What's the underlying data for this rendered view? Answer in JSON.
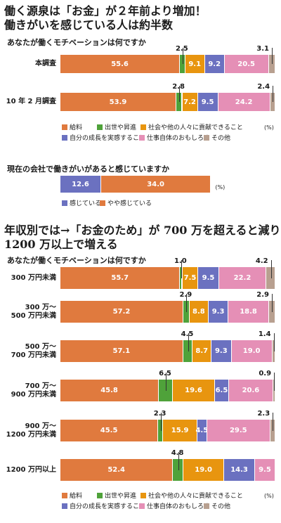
{
  "headline1": {
    "line1": "働く源泉は「お金」が２年前より増加！",
    "line2": "働きがいを感じている人は約半数"
  },
  "headline2": {
    "line1": "年収別では→「お金のため」が 700 万を超えると減り",
    "line2": "1200 万以上で増える"
  },
  "question_motivation": "あなたが働くモチベーションは何ですか",
  "question_fulfillment": "現在の会社で働きがいがあると感じていますか",
  "unit": "(%)",
  "colors": {
    "給料": "#e07a3e",
    "出世や昇進": "#4fa23a",
    "社会や他の人々に貢献できること": "#e8950f",
    "自分の成長を実感すること": "#6b71c0",
    "仕事自体のおもしろさ": "#e58fb6",
    "その他": "#b8a090",
    "感じている": "#6b71c0",
    "やや感じている": "#e07a3e"
  },
  "legend_items": [
    "給料",
    "出世や昇進",
    "社会や他の人々に貢献できること",
    "自分の成長を実感すること",
    "仕事自体のおもしろさ",
    "その他"
  ],
  "chart_data": [
    {
      "type": "bar",
      "title": "あなたが働くモチベーションは何ですか",
      "stacked": true,
      "orientation": "horizontal",
      "categories": [
        "本調査",
        "10 年 2 月調査"
      ],
      "series": [
        {
          "name": "給料",
          "values": [
            55.6,
            53.9
          ]
        },
        {
          "name": "出世や昇進",
          "values": [
            2.5,
            2.8
          ]
        },
        {
          "name": "社会や他の人々に貢献できること",
          "values": [
            9.1,
            7.2
          ]
        },
        {
          "name": "自分の成長を実感すること",
          "values": [
            9.2,
            9.5
          ]
        },
        {
          "name": "仕事自体のおもしろさ",
          "values": [
            20.5,
            24.2
          ]
        },
        {
          "name": "その他",
          "values": [
            3.1,
            2.4
          ]
        }
      ],
      "unit": "%",
      "legend": "bottom"
    },
    {
      "type": "bar",
      "title": "現在の会社で働きがいがあると感じていますか",
      "stacked": true,
      "orientation": "horizontal",
      "categories": [
        ""
      ],
      "series": [
        {
          "name": "感じている",
          "values": [
            12.6
          ]
        },
        {
          "name": "やや感じている",
          "values": [
            34.0
          ]
        }
      ],
      "unit": "%",
      "legend": "bottom"
    },
    {
      "type": "bar",
      "title": "あなたが働くモチベーションは何ですか",
      "stacked": true,
      "orientation": "horizontal",
      "categories": [
        "300 万円未満",
        "300 万〜\n500 万円未満",
        "500 万〜\n700 万円未満",
        "700 万〜\n900 万円未満",
        "900 万〜\n1200 万円未満",
        "1200 万円以上"
      ],
      "series": [
        {
          "name": "給料",
          "values": [
            55.7,
            57.2,
            57.1,
            45.8,
            45.5,
            52.4
          ]
        },
        {
          "name": "出世や昇進",
          "values": [
            1.0,
            2.9,
            4.5,
            6.5,
            2.3,
            4.8
          ]
        },
        {
          "name": "社会や他の人々に貢献できること",
          "values": [
            7.5,
            8.8,
            8.7,
            19.6,
            15.9,
            19.0
          ]
        },
        {
          "name": "自分の成長を実感すること",
          "values": [
            9.5,
            9.3,
            9.3,
            6.5,
            4.5,
            14.3
          ]
        },
        {
          "name": "仕事自体のおもしろさ",
          "values": [
            22.2,
            18.8,
            19.0,
            20.6,
            29.5,
            9.5
          ]
        },
        {
          "name": "その他",
          "values": [
            4.2,
            2.9,
            1.4,
            0.9,
            2.3,
            0.0
          ]
        }
      ],
      "unit": "%",
      "legend": "bottom"
    }
  ]
}
